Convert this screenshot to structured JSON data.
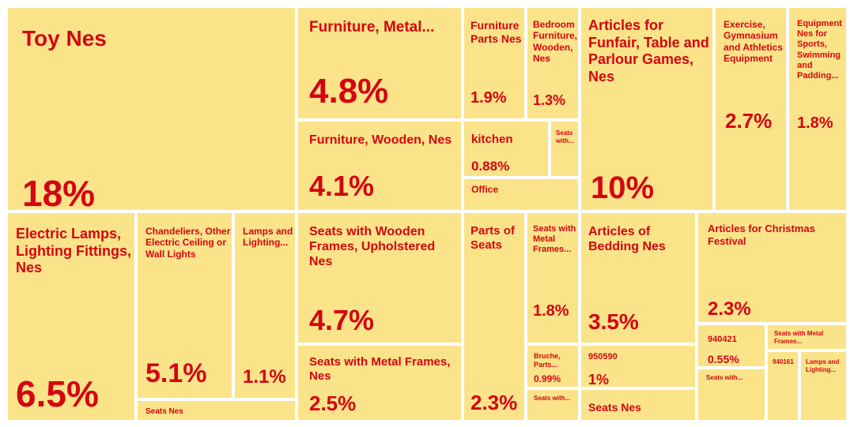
{
  "chart_data": {
    "type": "treemap",
    "colors": {
      "tile": "#fbe38a",
      "text": "#d40511",
      "border": "#ffffff"
    },
    "items": [
      {
        "label": "Toy Nes",
        "value": "18%"
      },
      {
        "label": "Furniture, Metal...",
        "value": "4.8%"
      },
      {
        "label": "Furniture Parts Nes",
        "value": "1.9%"
      },
      {
        "label": "Bedroom Furniture, Wooden, Nes",
        "value": "1.3%"
      },
      {
        "label": "Furniture, Wooden, Nes",
        "value": "4.1%"
      },
      {
        "label": "kitchen",
        "value": "0.88%"
      },
      {
        "label": "Seats with...",
        "value": ""
      },
      {
        "label": "Office",
        "value": ""
      },
      {
        "label": "Articles for Funfair, Table and Parlour Games, Nes",
        "value": "10%"
      },
      {
        "label": "Exercise, Gymnasium and Athletics Equipment",
        "value": "2.7%"
      },
      {
        "label": "Equipment Nes for Sports, Swimming and Padding...",
        "value": "1.8%"
      },
      {
        "label": "Electric Lamps, Lighting Fittings, Nes",
        "value": "6.5%"
      },
      {
        "label": "Chandeliers, Other Electric Ceiling or Wall Lights",
        "value": "5.1%"
      },
      {
        "label": "Lamps and Lighting...",
        "value": "1.1%"
      },
      {
        "label": "Seats Nes",
        "value": ""
      },
      {
        "label": "Seats with Wooden Frames, Upholstered Nes",
        "value": "4.7%"
      },
      {
        "label": "Seats with Metal Frames, Nes",
        "value": "2.5%"
      },
      {
        "label": "Parts of Seats",
        "value": "2.3%"
      },
      {
        "label": "Seats with Metal Frames...",
        "value": "1.8%"
      },
      {
        "label": "Bruche, Parts...",
        "value": "0.99%"
      },
      {
        "label": "Seats with...",
        "value": ""
      },
      {
        "label": "Articles of Bedding Nes",
        "value": "3.5%"
      },
      {
        "label": "950590",
        "value": "1%"
      },
      {
        "label": "Seats Nes",
        "value": ""
      },
      {
        "label": "Articles for Christmas Festival",
        "value": "2.3%"
      },
      {
        "label": "940421",
        "value": "0.55%"
      },
      {
        "label": "Seats with Metal Frames...",
        "value": ""
      },
      {
        "label": "Seats with...",
        "value": ""
      },
      {
        "label": "940161",
        "value": ""
      },
      {
        "label": "Lamps and Lighting...",
        "value": ""
      }
    ]
  }
}
